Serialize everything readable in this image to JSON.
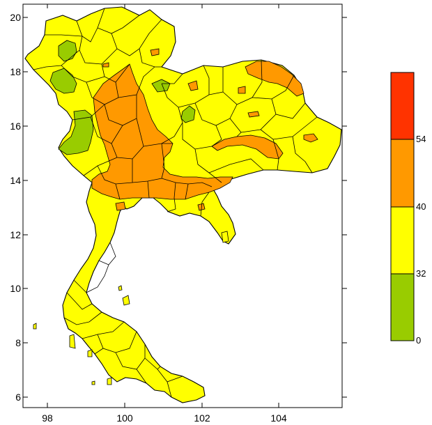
{
  "map": {
    "x_axis": {
      "tick_labels": [
        "98",
        "100",
        "102",
        "104"
      ]
    },
    "y_axis": {
      "tick_labels": [
        "20",
        "18",
        "16",
        "14",
        "12",
        "10",
        "8",
        "6"
      ]
    }
  },
  "legend": {
    "bands": [
      {
        "color": "#99cc00",
        "from": 0,
        "to": 32
      },
      {
        "color": "#ffff00",
        "from": 32,
        "to": 40
      },
      {
        "color": "#ff9900",
        "from": 40,
        "to": 54
      },
      {
        "color": "#ff3300",
        "from": 54,
        "to": null
      }
    ],
    "labels": [
      "0",
      "32",
      "40",
      "54"
    ]
  }
}
